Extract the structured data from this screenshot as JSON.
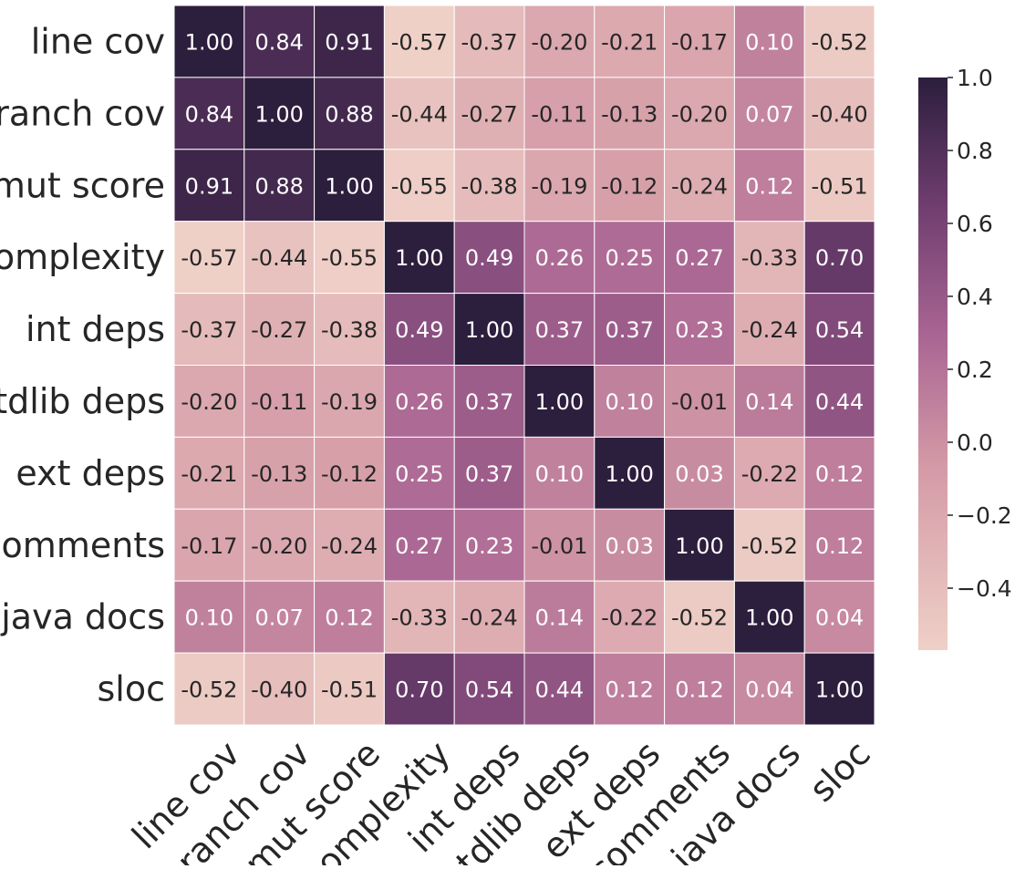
{
  "chart_data": {
    "type": "heatmap",
    "labels": [
      "line cov",
      "branch cov",
      "mut score",
      "complexity",
      "int deps",
      "stdlib deps",
      "ext deps",
      "comments",
      "java docs",
      "sloc"
    ],
    "matrix": [
      [
        "1.00",
        "0.84",
        "0.91",
        "-0.57",
        "-0.37",
        "-0.20",
        "-0.21",
        "-0.17",
        "0.10",
        "-0.52"
      ],
      [
        "0.84",
        "1.00",
        "0.88",
        "-0.44",
        "-0.27",
        "-0.11",
        "-0.13",
        "-0.20",
        "0.07",
        "-0.40"
      ],
      [
        "0.91",
        "0.88",
        "1.00",
        "-0.55",
        "-0.38",
        "-0.19",
        "-0.12",
        "-0.24",
        "0.12",
        "-0.51"
      ],
      [
        "-0.57",
        "-0.44",
        "-0.55",
        "1.00",
        "0.49",
        "0.26",
        "0.25",
        "0.27",
        "-0.33",
        "0.70"
      ],
      [
        "-0.37",
        "-0.27",
        "-0.38",
        "0.49",
        "1.00",
        "0.37",
        "0.37",
        "0.23",
        "-0.24",
        "0.54"
      ],
      [
        "-0.20",
        "-0.11",
        "-0.19",
        "0.26",
        "0.37",
        "1.00",
        "0.10",
        "-0.01",
        "0.14",
        "0.44"
      ],
      [
        "-0.21",
        "-0.13",
        "-0.12",
        "0.25",
        "0.37",
        "0.10",
        "1.00",
        "0.03",
        "-0.22",
        "0.12"
      ],
      [
        "-0.17",
        "-0.20",
        "-0.24",
        "0.27",
        "0.23",
        "-0.01",
        "0.03",
        "1.00",
        "-0.52",
        "0.12"
      ],
      [
        "0.10",
        "0.07",
        "0.12",
        "-0.33",
        "-0.24",
        "0.14",
        "-0.22",
        "-0.52",
        "1.00",
        "0.04"
      ],
      [
        "-0.52",
        "-0.40",
        "-0.51",
        "0.70",
        "0.54",
        "0.44",
        "0.12",
        "0.12",
        "0.04",
        "1.00"
      ]
    ],
    "colorbar": {
      "min": -0.57,
      "max": 1.0,
      "ticks": [
        "1.0",
        "0.8",
        "0.6",
        "0.4",
        "0.2",
        "0.0",
        "−0.2",
        "−0.4"
      ],
      "tick_values": [
        1.0,
        0.8,
        0.6,
        0.4,
        0.2,
        0.0,
        -0.2,
        -0.4
      ]
    },
    "colors": {
      "low": "#efd0c7",
      "mid1": "#d49aa6",
      "mid2": "#a96593",
      "mid3": "#6e3d6e",
      "high": "#2c1e3d",
      "grid": "#ffffff",
      "text_dark": "#262626",
      "text_light": "#ffffff"
    }
  }
}
